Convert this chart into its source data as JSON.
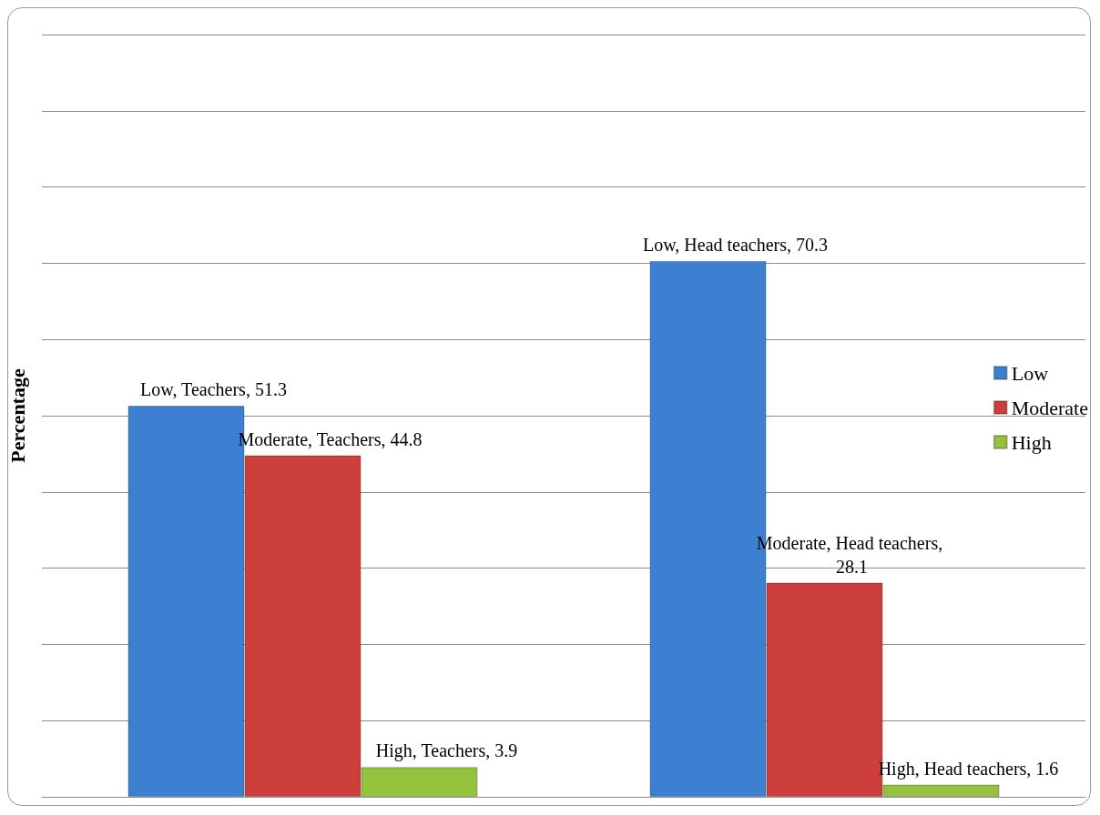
{
  "chart_data": {
    "type": "bar",
    "ylabel": "Percentage",
    "categories": [
      null,
      null
    ],
    "series": [
      {
        "name": "Low",
        "color": "#3d7fd0",
        "values": [
          51.3,
          70.3
        ],
        "value_labels": [
          "Low, Teachers, 51.3",
          "Low, Head teachers, 70.3"
        ]
      },
      {
        "name": "Moderate",
        "color": "#cc3f3a",
        "values": [
          44.8,
          28.1
        ],
        "value_labels": [
          "Moderate, Teachers, 44.8",
          "Moderate, Head teachers, 28.1"
        ]
      },
      {
        "name": "High",
        "color": "#94c23c",
        "values": [
          3.9,
          1.6
        ],
        "value_labels": [
          "High, Teachers, 3.9",
          "High, Head teachers, 1.6"
        ]
      }
    ],
    "ylim": [
      0,
      100
    ],
    "yticks": [
      {
        "value": 0,
        "label": null
      },
      {
        "value": 10,
        "label": null
      },
      {
        "value": 20,
        "label": null
      },
      {
        "value": 30,
        "label": null
      },
      {
        "value": 40,
        "label": null
      },
      {
        "value": 50,
        "label": null
      },
      {
        "value": 60,
        "label": null
      },
      {
        "value": 70,
        "label": null
      },
      {
        "value": 80,
        "label": null
      },
      {
        "value": 90,
        "label": null
      },
      {
        "value": 100,
        "label": null
      }
    ],
    "grid": "y",
    "legend": "right",
    "tick_labels": false
  }
}
